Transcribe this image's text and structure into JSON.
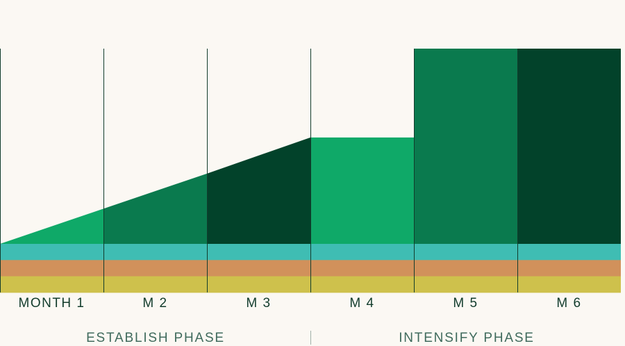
{
  "months": [
    {
      "label": "MONTH 1",
      "start_level": 0,
      "end_level": 0.18,
      "fill": "#0fa968"
    },
    {
      "label": "M 2",
      "start_level": 0.18,
      "end_level": 0.36,
      "fill": "#0a7a4e"
    },
    {
      "label": "M 3",
      "start_level": 0.36,
      "end_level": 0.545,
      "fill": "#02422a"
    },
    {
      "label": "M 4",
      "start_level": 0.545,
      "end_level": 0.545,
      "fill": "#0fa968"
    },
    {
      "label": "M 5",
      "start_level": 1,
      "end_level": 1,
      "fill": "#0a7a4e"
    },
    {
      "label": "M 6",
      "start_level": 1,
      "end_level": 1,
      "fill": "#02422a"
    }
  ],
  "base_bands": [
    "#3fbdb3",
    "#d1915b",
    "#cec14c"
  ],
  "divider_color": "#123c2c",
  "phases": [
    {
      "label": "ESTABLISH PHASE"
    },
    {
      "label": "INTENSIFY PHASE"
    }
  ]
}
